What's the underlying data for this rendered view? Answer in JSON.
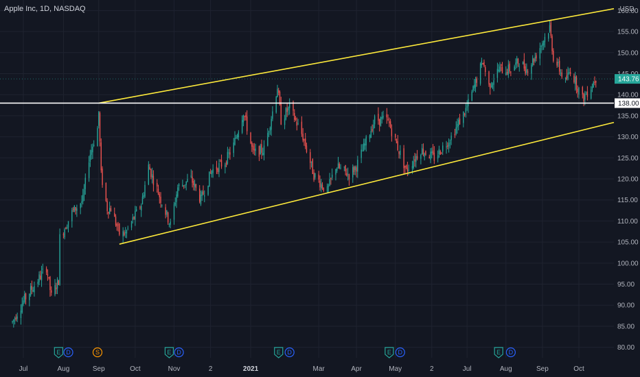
{
  "chart_data": {
    "type": "candlestick",
    "title": "Apple Inc, 1D, NASDAQ",
    "currency": "USD",
    "ylim": [
      77.5,
      162.5
    ],
    "y_ticks": [
      80,
      85,
      90,
      95,
      100,
      105,
      110,
      115,
      120,
      125,
      130,
      135,
      140,
      145,
      150,
      155,
      160
    ],
    "y_tick_labels": [
      "80.00",
      "85.00",
      "90.00",
      "95.00",
      "100.00",
      "105.00",
      "110.00",
      "115.00",
      "120.00",
      "125.00",
      "130.00",
      "135.00",
      "140.00",
      "145.00",
      "150.00",
      "155.00",
      "160.00"
    ],
    "x_ticks": [
      {
        "label": "Jul",
        "date": "2020-07-01",
        "bold": false
      },
      {
        "label": "Aug",
        "date": "2020-08-03",
        "bold": false
      },
      {
        "label": "Sep",
        "date": "2020-09-01",
        "bold": false
      },
      {
        "label": "Oct",
        "date": "2020-10-01",
        "bold": false
      },
      {
        "label": "Nov",
        "date": "2020-11-02",
        "bold": false
      },
      {
        "label": "2",
        "date": "2020-12-02",
        "bold": false
      },
      {
        "label": "2021",
        "date": "2021-01-04",
        "bold": true
      },
      {
        "label": "Mar",
        "date": "2021-03-01",
        "bold": false
      },
      {
        "label": "Apr",
        "date": "2021-04-01",
        "bold": false
      },
      {
        "label": "May",
        "date": "2021-05-03",
        "bold": false
      },
      {
        "label": "2",
        "date": "2021-06-02",
        "bold": false
      },
      {
        "label": "Jul",
        "date": "2021-07-01",
        "bold": false
      },
      {
        "label": "Aug",
        "date": "2021-08-02",
        "bold": false
      },
      {
        "label": "Sep",
        "date": "2021-09-01",
        "bold": false
      },
      {
        "label": "Oct",
        "date": "2021-10-01",
        "bold": false
      }
    ],
    "last_price": {
      "value": 143.76,
      "label": "143.76"
    },
    "horizontal_line": {
      "value": 138.0,
      "label": "138.00",
      "color": "#ffffff"
    },
    "channel_lines": [
      {
        "name": "upper",
        "color": "#ffeb3b",
        "from": {
          "date": "2020-09-01",
          "value": 138.0
        },
        "to": {
          "date": "2021-10-31",
          "value": 160.5
        }
      },
      {
        "name": "lower",
        "color": "#ffeb3b",
        "from": {
          "date": "2020-09-18",
          "value": 104.5
        },
        "to": {
          "date": "2021-10-31",
          "value": 133.5
        }
      }
    ],
    "candle_anchors": [
      [
        "2020-06-22",
        86
      ],
      [
        "2020-07-01",
        91
      ],
      [
        "2020-07-13",
        96
      ],
      [
        "2020-07-20",
        99
      ],
      [
        "2020-07-24",
        92
      ],
      [
        "2020-07-30",
        96
      ],
      [
        "2020-07-31",
        106
      ],
      [
        "2020-08-10",
        112
      ],
      [
        "2020-08-19",
        115
      ],
      [
        "2020-08-24",
        125
      ],
      [
        "2020-08-31",
        132
      ],
      [
        "2020-09-01",
        136
      ],
      [
        "2020-09-03",
        121
      ],
      [
        "2020-09-08",
        113
      ],
      [
        "2020-09-11",
        113
      ],
      [
        "2020-09-18",
        107
      ],
      [
        "2020-09-23",
        107
      ],
      [
        "2020-10-06",
        114
      ],
      [
        "2020-10-12",
        123
      ],
      [
        "2020-10-30",
        109
      ],
      [
        "2020-11-05",
        118
      ],
      [
        "2020-11-16",
        120
      ],
      [
        "2020-11-24",
        115
      ],
      [
        "2020-12-03",
        122
      ],
      [
        "2020-12-14",
        124
      ],
      [
        "2020-12-21",
        128
      ],
      [
        "2020-12-29",
        136
      ],
      [
        "2021-01-06",
        126
      ],
      [
        "2021-01-15",
        127
      ],
      [
        "2021-01-22",
        136
      ],
      [
        "2021-01-26",
        142
      ],
      [
        "2021-01-29",
        134
      ],
      [
        "2021-02-05",
        137
      ],
      [
        "2021-02-16",
        130
      ],
      [
        "2021-02-25",
        121
      ],
      [
        "2021-03-08",
        117
      ],
      [
        "2021-03-15",
        123
      ],
      [
        "2021-03-26",
        121
      ],
      [
        "2021-04-01",
        123
      ],
      [
        "2021-04-16",
        134
      ],
      [
        "2021-04-26",
        134
      ],
      [
        "2021-04-28",
        133
      ],
      [
        "2021-05-12",
        122
      ],
      [
        "2021-05-24",
        127
      ],
      [
        "2021-06-04",
        125
      ],
      [
        "2021-06-18",
        130
      ],
      [
        "2021-07-01",
        137
      ],
      [
        "2021-07-14",
        148
      ],
      [
        "2021-07-19",
        142
      ],
      [
        "2021-07-27",
        146
      ],
      [
        "2021-08-06",
        146
      ],
      [
        "2021-08-13",
        148
      ],
      [
        "2021-08-19",
        146
      ],
      [
        "2021-08-26",
        149
      ],
      [
        "2021-09-07",
        156
      ],
      [
        "2021-09-10",
        149
      ],
      [
        "2021-09-20",
        143
      ],
      [
        "2021-09-24",
        146
      ],
      [
        "2021-10-04",
        139
      ],
      [
        "2021-10-11",
        142
      ],
      [
        "2021-10-15",
        144
      ]
    ],
    "event_badges": [
      {
        "letter": "E",
        "date": "2020-07-30"
      },
      {
        "letter": "D",
        "date": "2020-08-07"
      },
      {
        "letter": "S",
        "date": "2020-08-31"
      },
      {
        "letter": "E",
        "date": "2020-10-29"
      },
      {
        "letter": "D",
        "date": "2020-11-06"
      },
      {
        "letter": "E",
        "date": "2021-01-27"
      },
      {
        "letter": "D",
        "date": "2021-02-05"
      },
      {
        "letter": "E",
        "date": "2021-04-28"
      },
      {
        "letter": "D",
        "date": "2021-05-07"
      },
      {
        "letter": "E",
        "date": "2021-07-27"
      },
      {
        "letter": "D",
        "date": "2021-08-06"
      }
    ],
    "colors": {
      "background": "#131722",
      "grid": "#1f2330",
      "up": "#26a69a",
      "down": "#ef5350",
      "channel": "#ffeb3b",
      "earnings_badge": "#26a69a",
      "dividend_badge": "#2962ff",
      "split_badge": "#ff9800"
    }
  }
}
